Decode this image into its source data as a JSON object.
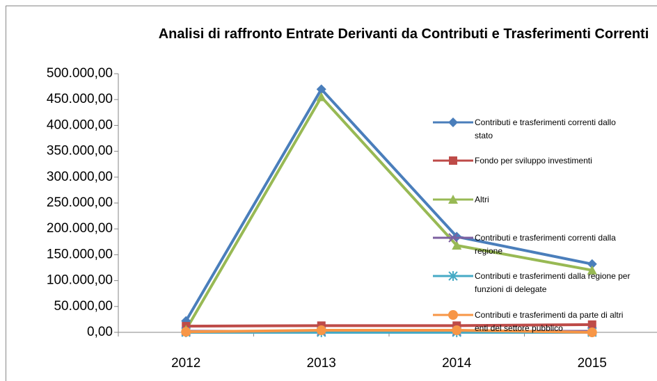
{
  "chart_data": {
    "type": "line",
    "title": "Analisi di raffronto Entrate Derivanti da Contributi e Trasferimenti Correnti",
    "categories": [
      "2012",
      "2013",
      "2014",
      "2015"
    ],
    "series": [
      {
        "name": "Contributi e trasferimenti correnti dallo stato",
        "color": "#4a7ebb",
        "marker": "diamond",
        "values": [
          22000,
          470000,
          185000,
          132000
        ]
      },
      {
        "name": "Fondo per sviluppo investimenti",
        "color": "#be4b48",
        "marker": "square",
        "values": [
          12000,
          13000,
          13000,
          15000
        ]
      },
      {
        "name": "Altri",
        "color": "#98b954",
        "marker": "triangle",
        "values": [
          5000,
          455000,
          168000,
          120000
        ]
      },
      {
        "name": "Contributi e trasferimenti correnti dalla regione",
        "color": "#7d60a0",
        "marker": "x",
        "values": [
          2000,
          2000,
          2000,
          2000
        ]
      },
      {
        "name": "Contributi e trasferimenti dalla regione per funzioni di delegate",
        "color": "#46aac5",
        "marker": "star",
        "values": [
          0,
          0,
          0,
          0
        ]
      },
      {
        "name": "Contributi e trasferimenti da parte di altri enti del settore pubblico",
        "color": "#f79646",
        "marker": "circle",
        "values": [
          1000,
          4000,
          4000,
          0
        ]
      }
    ],
    "ylim": [
      0,
      500000
    ],
    "yticks": [
      {
        "value": 0,
        "label": "0,00"
      },
      {
        "value": 50000,
        "label": "50.000,00"
      },
      {
        "value": 100000,
        "label": "100.000,00"
      },
      {
        "value": 150000,
        "label": "150.000,00"
      },
      {
        "value": 200000,
        "label": "200.000,00"
      },
      {
        "value": 250000,
        "label": "250.000,00"
      },
      {
        "value": 300000,
        "label": "300.000,00"
      },
      {
        "value": 350000,
        "label": "350.000,00"
      },
      {
        "value": 400000,
        "label": "400.000,00"
      },
      {
        "value": 450000,
        "label": "450.000,00"
      },
      {
        "value": 500000,
        "label": "500.000,00"
      }
    ],
    "grid": false,
    "legend": "right"
  }
}
